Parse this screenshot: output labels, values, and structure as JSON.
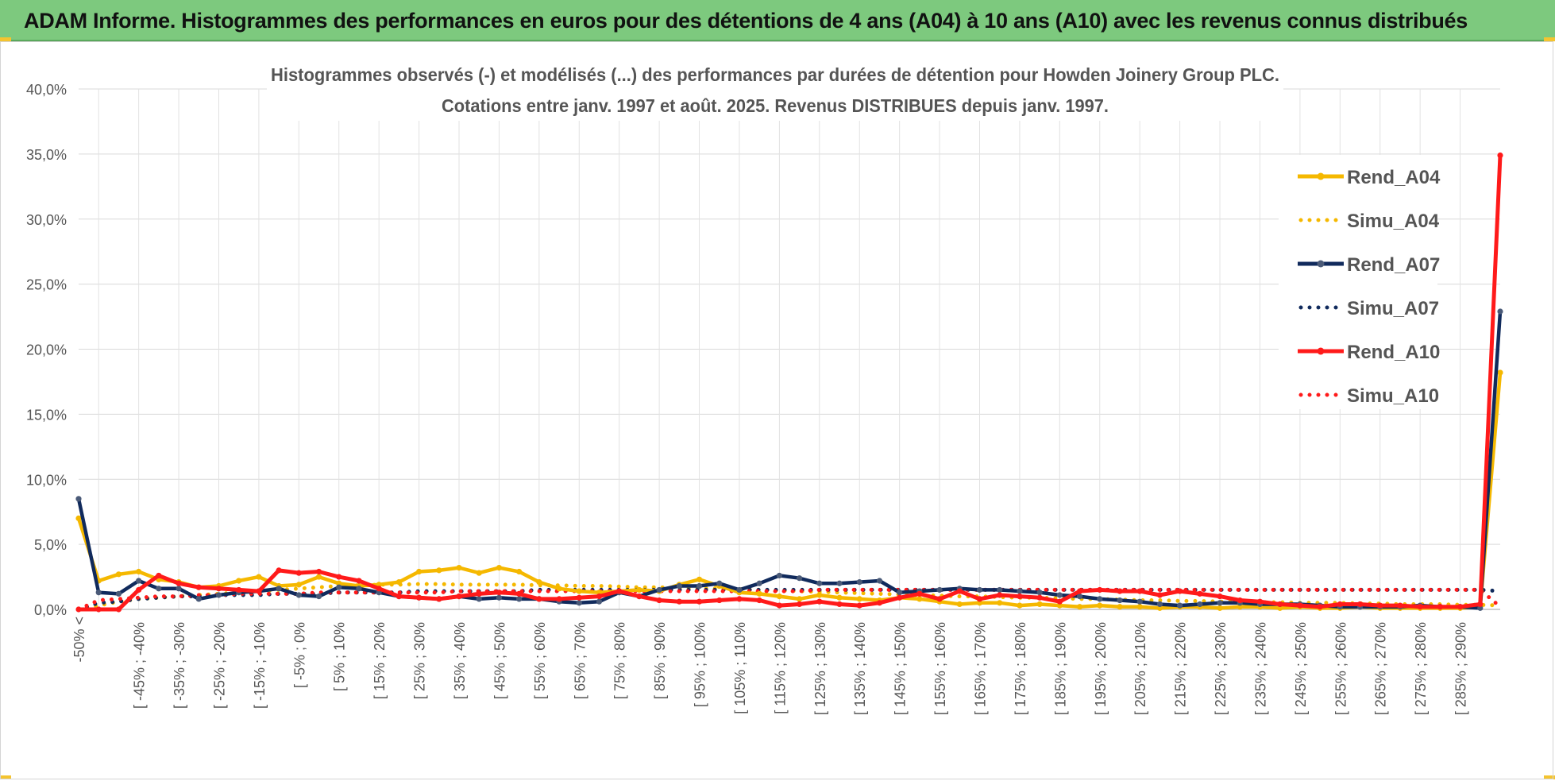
{
  "banner": {
    "title": "ADAM Informe. Histogrammes des performances en euros pour des détentions de 4 ans (A04) à 10 ans (A10) avec les revenus connus distribués"
  },
  "chart_data": {
    "type": "line",
    "title": "Histogrammes observés (-) et modélisés (...) des performances par durées de détention pour Howden Joinery Group PLC.",
    "subtitle": "Cotations entre janv. 1997 et août. 2025. Revenus DISTRIBUES depuis janv. 1997.",
    "xlabel": "",
    "ylabel": "",
    "ylim": [
      0,
      40
    ],
    "yticks": [
      "0,0%",
      "5,0%",
      "10,0%",
      "15,0%",
      "20,0%",
      "25,0%",
      "30,0%",
      "35,0%",
      "40,0%"
    ],
    "grid": true,
    "legend_position": "top-right",
    "x_tick_labels": [
      "-50% <",
      "[ -45% ; -40%",
      "[ -35% ; -30%",
      "[ -25% ; -20%",
      "[ -15% ; -10%",
      "[ -5% ; 0%",
      "[ 5% ; 10%",
      "[ 15% ; 20%",
      "[ 25% ; 30%",
      "[ 35% ; 40%",
      "[ 45% ; 50%",
      "[ 55% ; 60%",
      "[ 65% ; 70%",
      "[ 75% ; 80%",
      "[ 85% ; 90%",
      "[ 95% ; 100%",
      "[ 105% ; 110%",
      "[ 115% ; 120%",
      "[ 125% ; 130%",
      "[ 135% ; 140%",
      "[ 145% ; 150%",
      "[ 155% ; 160%",
      "[ 165% ; 170%",
      "[ 175% ; 180%",
      "[ 185% ; 190%",
      "[ 195% ; 200%",
      "[ 205% ; 210%",
      "[ 215% ; 220%",
      "[ 225% ; 230%",
      "[ 235% ; 240%",
      "[ 245% ; 250%",
      "[ 255% ; 260%",
      "[ 265% ; 270%",
      "[ 275% ; 280%",
      "[ 285% ; 290%"
    ],
    "series": [
      {
        "name": "Rend_A04",
        "style": "solid",
        "color": "#f5b800",
        "values": [
          7.0,
          2.2,
          2.7,
          2.9,
          2.3,
          2.1,
          1.7,
          1.8,
          2.2,
          2.5,
          1.8,
          1.9,
          2.5,
          2.0,
          1.8,
          1.9,
          2.1,
          2.9,
          3.0,
          3.2,
          2.8,
          3.2,
          2.9,
          2.1,
          1.6,
          1.4,
          1.3,
          1.4,
          1.5,
          1.4,
          1.9,
          2.3,
          1.8,
          1.3,
          1.2,
          1.0,
          0.8,
          1.1,
          0.9,
          0.8,
          0.7,
          0.9,
          0.8,
          0.6,
          0.4,
          0.5,
          0.5,
          0.3,
          0.4,
          0.3,
          0.2,
          0.3,
          0.2,
          0.2,
          0.1,
          0.2,
          0.2,
          0.1,
          0.2,
          0.2,
          0.1,
          0.2,
          0.1,
          0.1,
          0.2,
          0.1,
          0.1,
          0.1,
          0.1,
          0.1,
          0.2,
          18.2
        ]
      },
      {
        "name": "Simu_A04",
        "style": "dotted",
        "color": "#f5b800",
        "values": [
          0.0,
          0.3,
          0.6,
          0.8,
          0.9,
          1.0,
          1.1,
          1.2,
          1.3,
          1.4,
          1.5,
          1.6,
          1.7,
          1.8,
          1.85,
          1.9,
          1.9,
          1.95,
          1.95,
          1.9,
          1.9,
          1.9,
          1.9,
          1.85,
          1.85,
          1.8,
          1.8,
          1.75,
          1.7,
          1.7,
          1.65,
          1.6,
          1.6,
          1.55,
          1.5,
          1.45,
          1.4,
          1.35,
          1.3,
          1.25,
          1.2,
          1.15,
          1.1,
          1.05,
          1.0,
          1.0,
          0.95,
          0.9,
          0.9,
          0.85,
          0.8,
          0.8,
          0.75,
          0.7,
          0.7,
          0.65,
          0.65,
          0.6,
          0.6,
          0.55,
          0.55,
          0.5,
          0.5,
          0.5,
          0.45,
          0.45,
          0.4,
          0.4,
          0.4,
          0.35,
          0.35,
          0.3
        ]
      },
      {
        "name": "Rend_A07",
        "style": "solid",
        "color": "#102a5c",
        "values": [
          8.5,
          1.3,
          1.2,
          2.2,
          1.6,
          1.6,
          0.8,
          1.1,
          1.3,
          1.4,
          1.6,
          1.1,
          1.0,
          1.7,
          1.6,
          1.3,
          1.0,
          0.9,
          0.8,
          1.0,
          0.8,
          0.9,
          0.8,
          0.8,
          0.6,
          0.5,
          0.6,
          1.3,
          1.0,
          1.5,
          1.8,
          1.8,
          2.0,
          1.5,
          2.0,
          2.6,
          2.4,
          2.0,
          2.0,
          2.1,
          2.2,
          1.3,
          1.4,
          1.5,
          1.6,
          1.5,
          1.5,
          1.4,
          1.3,
          1.1,
          1.0,
          0.8,
          0.7,
          0.6,
          0.4,
          0.3,
          0.4,
          0.5,
          0.5,
          0.4,
          0.4,
          0.4,
          0.3,
          0.2,
          0.2,
          0.2,
          0.2,
          0.3,
          0.2,
          0.2,
          0.1,
          22.9
        ]
      },
      {
        "name": "Simu_A07",
        "style": "dotted",
        "color": "#102a5c",
        "values": [
          0.0,
          0.5,
          0.6,
          0.8,
          0.9,
          1.0,
          1.0,
          1.1,
          1.1,
          1.1,
          1.2,
          1.2,
          1.2,
          1.3,
          1.3,
          1.3,
          1.3,
          1.4,
          1.4,
          1.4,
          1.4,
          1.4,
          1.4,
          1.5,
          1.5,
          1.5,
          1.5,
          1.5,
          1.5,
          1.5,
          1.5,
          1.5,
          1.5,
          1.5,
          1.5,
          1.5,
          1.5,
          1.5,
          1.5,
          1.5,
          1.5,
          1.5,
          1.5,
          1.5,
          1.5,
          1.5,
          1.5,
          1.5,
          1.5,
          1.5,
          1.5,
          1.5,
          1.5,
          1.5,
          1.5,
          1.5,
          1.5,
          1.5,
          1.5,
          1.5,
          1.5,
          1.5,
          1.5,
          1.5,
          1.5,
          1.5,
          1.5,
          1.5,
          1.5,
          1.5,
          1.5,
          1.4
        ]
      },
      {
        "name": "Rend_A10",
        "style": "solid",
        "color": "#ff1a1a",
        "values": [
          0.0,
          0.0,
          0.0,
          1.5,
          2.6,
          2.0,
          1.7,
          1.6,
          1.5,
          1.4,
          3.0,
          2.8,
          2.9,
          2.5,
          2.2,
          1.6,
          1.0,
          0.9,
          0.8,
          1.0,
          1.2,
          1.3,
          1.2,
          0.8,
          0.8,
          0.9,
          1.0,
          1.4,
          1.0,
          0.7,
          0.6,
          0.6,
          0.7,
          0.8,
          0.7,
          0.3,
          0.4,
          0.6,
          0.4,
          0.3,
          0.5,
          0.9,
          1.2,
          0.8,
          1.4,
          0.8,
          1.1,
          1.0,
          0.9,
          0.6,
          1.4,
          1.5,
          1.4,
          1.4,
          1.1,
          1.4,
          1.2,
          1.0,
          0.7,
          0.6,
          0.4,
          0.3,
          0.2,
          0.4,
          0.4,
          0.3,
          0.3,
          0.2,
          0.2,
          0.2,
          0.4,
          34.9
        ]
      },
      {
        "name": "Simu_A10",
        "style": "dotted",
        "color": "#ff1a1a",
        "values": [
          0.0,
          0.7,
          0.8,
          0.9,
          1.0,
          1.0,
          1.1,
          1.1,
          1.2,
          1.2,
          1.2,
          1.2,
          1.3,
          1.3,
          1.3,
          1.3,
          1.3,
          1.3,
          1.3,
          1.4,
          1.4,
          1.4,
          1.4,
          1.4,
          1.4,
          1.4,
          1.4,
          1.4,
          1.4,
          1.4,
          1.4,
          1.4,
          1.4,
          1.4,
          1.4,
          1.4,
          1.4,
          1.5,
          1.5,
          1.5,
          1.5,
          1.5,
          1.5,
          1.5,
          1.5,
          1.5,
          1.5,
          1.5,
          1.5,
          1.5,
          1.5,
          1.5,
          1.5,
          1.5,
          1.5,
          1.5,
          1.5,
          1.5,
          1.5,
          1.5,
          1.5,
          1.5,
          1.5,
          1.5,
          1.5,
          1.5,
          1.5,
          1.5,
          1.5,
          1.5,
          1.5,
          0.2
        ]
      }
    ]
  }
}
